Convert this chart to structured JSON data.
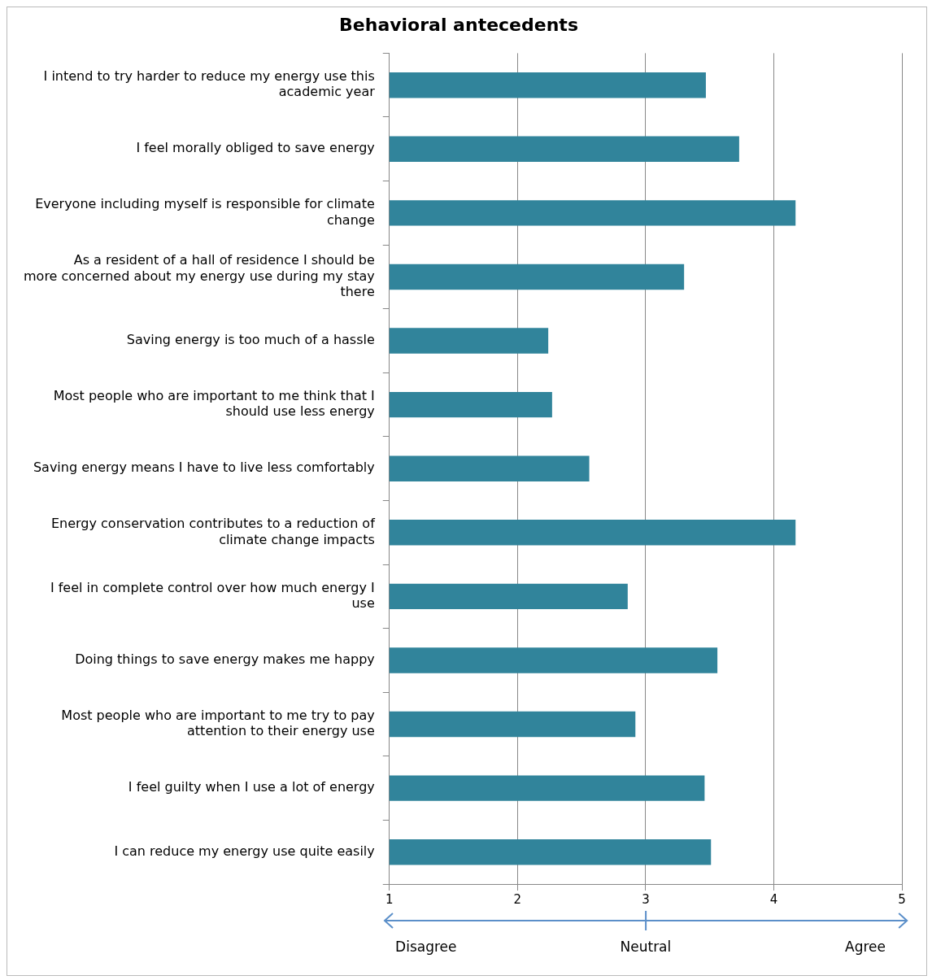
{
  "chart_data": {
    "type": "bar",
    "orientation": "horizontal",
    "title": "Behavioral antecedents",
    "categories": [
      "I intend to try harder to reduce my energy use this academic year",
      "I feel morally obliged to save energy",
      "Everyone including myself is responsible for climate change",
      "As a resident of a hall of residence I should be more concerned about my energy use during my stay there",
      "Saving energy is too much of a hassle",
      "Most people who are important to me think that I should use less energy",
      "Saving energy means I have to live less comfortably",
      "Energy conservation contributes to a reduction of climate change impacts",
      "I feel in complete control over how much energy I use",
      "Doing things to save energy makes me happy",
      "Most people who are important to me try to pay attention to their energy use",
      "I feel guilty when I use a lot of energy",
      "I can reduce my energy use quite easily"
    ],
    "values": [
      3.47,
      3.73,
      4.17,
      3.3,
      2.24,
      2.27,
      2.56,
      4.17,
      2.86,
      3.56,
      2.92,
      3.46,
      3.51
    ],
    "color": "#31849b",
    "xlim": [
      1,
      5
    ],
    "xticks": [
      1,
      2,
      3,
      4,
      5
    ],
    "grid": "x",
    "annotations": [
      "Disagree",
      "Neutral",
      "Agree"
    ]
  }
}
